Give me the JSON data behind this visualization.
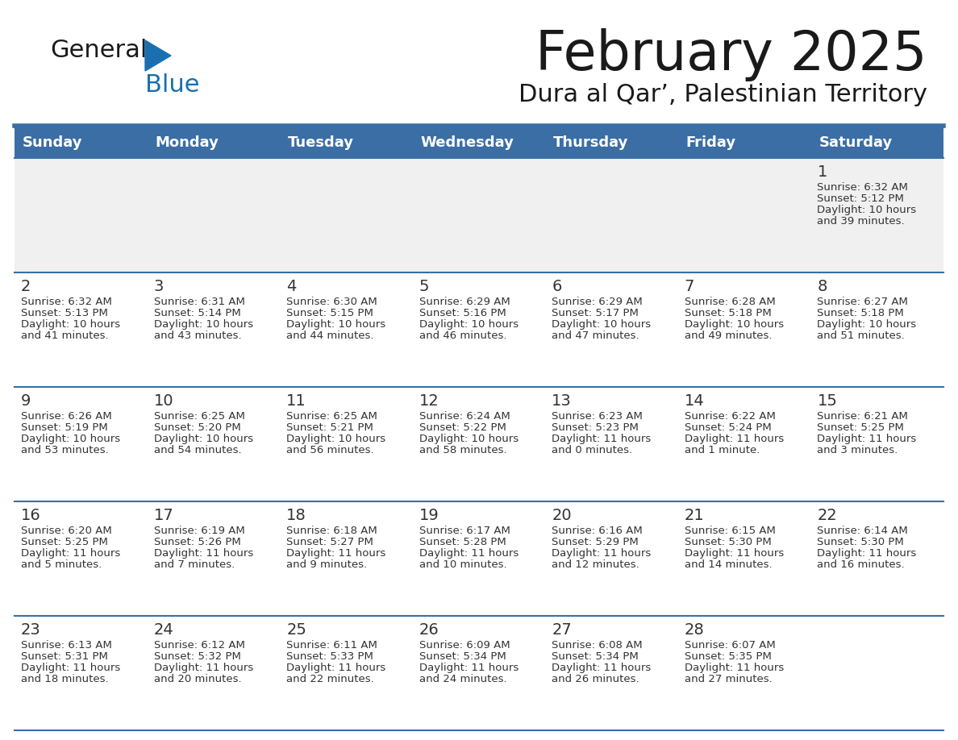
{
  "title": "February 2025",
  "subtitle": "Dura al Qar’, Palestinian Territory",
  "days_of_week": [
    "Sunday",
    "Monday",
    "Tuesday",
    "Wednesday",
    "Thursday",
    "Friday",
    "Saturday"
  ],
  "header_bg": "#3a6ea5",
  "header_text": "#ffffff",
  "row_border": "#3a6ea5",
  "cell_bg_normal": "#ffffff",
  "cell_bg_first": "#f0f0f0",
  "title_color": "#1a1a1a",
  "subtitle_color": "#1a1a1a",
  "text_color": "#333333",
  "logo_black": "#1a1a1a",
  "logo_blue": "#1a6faf",
  "triangle_color": "#1a6faf",
  "calendar": [
    [
      {
        "day": null,
        "sunrise": null,
        "sunset": null,
        "daylight": null
      },
      {
        "day": null,
        "sunrise": null,
        "sunset": null,
        "daylight": null
      },
      {
        "day": null,
        "sunrise": null,
        "sunset": null,
        "daylight": null
      },
      {
        "day": null,
        "sunrise": null,
        "sunset": null,
        "daylight": null
      },
      {
        "day": null,
        "sunrise": null,
        "sunset": null,
        "daylight": null
      },
      {
        "day": null,
        "sunrise": null,
        "sunset": null,
        "daylight": null
      },
      {
        "day": 1,
        "sunrise": "6:32 AM",
        "sunset": "5:12 PM",
        "daylight": "10 hours\nand 39 minutes."
      }
    ],
    [
      {
        "day": 2,
        "sunrise": "6:32 AM",
        "sunset": "5:13 PM",
        "daylight": "10 hours\nand 41 minutes."
      },
      {
        "day": 3,
        "sunrise": "6:31 AM",
        "sunset": "5:14 PM",
        "daylight": "10 hours\nand 43 minutes."
      },
      {
        "day": 4,
        "sunrise": "6:30 AM",
        "sunset": "5:15 PM",
        "daylight": "10 hours\nand 44 minutes."
      },
      {
        "day": 5,
        "sunrise": "6:29 AM",
        "sunset": "5:16 PM",
        "daylight": "10 hours\nand 46 minutes."
      },
      {
        "day": 6,
        "sunrise": "6:29 AM",
        "sunset": "5:17 PM",
        "daylight": "10 hours\nand 47 minutes."
      },
      {
        "day": 7,
        "sunrise": "6:28 AM",
        "sunset": "5:18 PM",
        "daylight": "10 hours\nand 49 minutes."
      },
      {
        "day": 8,
        "sunrise": "6:27 AM",
        "sunset": "5:18 PM",
        "daylight": "10 hours\nand 51 minutes."
      }
    ],
    [
      {
        "day": 9,
        "sunrise": "6:26 AM",
        "sunset": "5:19 PM",
        "daylight": "10 hours\nand 53 minutes."
      },
      {
        "day": 10,
        "sunrise": "6:25 AM",
        "sunset": "5:20 PM",
        "daylight": "10 hours\nand 54 minutes."
      },
      {
        "day": 11,
        "sunrise": "6:25 AM",
        "sunset": "5:21 PM",
        "daylight": "10 hours\nand 56 minutes."
      },
      {
        "day": 12,
        "sunrise": "6:24 AM",
        "sunset": "5:22 PM",
        "daylight": "10 hours\nand 58 minutes."
      },
      {
        "day": 13,
        "sunrise": "6:23 AM",
        "sunset": "5:23 PM",
        "daylight": "11 hours\nand 0 minutes."
      },
      {
        "day": 14,
        "sunrise": "6:22 AM",
        "sunset": "5:24 PM",
        "daylight": "11 hours\nand 1 minute."
      },
      {
        "day": 15,
        "sunrise": "6:21 AM",
        "sunset": "5:25 PM",
        "daylight": "11 hours\nand 3 minutes."
      }
    ],
    [
      {
        "day": 16,
        "sunrise": "6:20 AM",
        "sunset": "5:25 PM",
        "daylight": "11 hours\nand 5 minutes."
      },
      {
        "day": 17,
        "sunrise": "6:19 AM",
        "sunset": "5:26 PM",
        "daylight": "11 hours\nand 7 minutes."
      },
      {
        "day": 18,
        "sunrise": "6:18 AM",
        "sunset": "5:27 PM",
        "daylight": "11 hours\nand 9 minutes."
      },
      {
        "day": 19,
        "sunrise": "6:17 AM",
        "sunset": "5:28 PM",
        "daylight": "11 hours\nand 10 minutes."
      },
      {
        "day": 20,
        "sunrise": "6:16 AM",
        "sunset": "5:29 PM",
        "daylight": "11 hours\nand 12 minutes."
      },
      {
        "day": 21,
        "sunrise": "6:15 AM",
        "sunset": "5:30 PM",
        "daylight": "11 hours\nand 14 minutes."
      },
      {
        "day": 22,
        "sunrise": "6:14 AM",
        "sunset": "5:30 PM",
        "daylight": "11 hours\nand 16 minutes."
      }
    ],
    [
      {
        "day": 23,
        "sunrise": "6:13 AM",
        "sunset": "5:31 PM",
        "daylight": "11 hours\nand 18 minutes."
      },
      {
        "day": 24,
        "sunrise": "6:12 AM",
        "sunset": "5:32 PM",
        "daylight": "11 hours\nand 20 minutes."
      },
      {
        "day": 25,
        "sunrise": "6:11 AM",
        "sunset": "5:33 PM",
        "daylight": "11 hours\nand 22 minutes."
      },
      {
        "day": 26,
        "sunrise": "6:09 AM",
        "sunset": "5:34 PM",
        "daylight": "11 hours\nand 24 minutes."
      },
      {
        "day": 27,
        "sunrise": "6:08 AM",
        "sunset": "5:34 PM",
        "daylight": "11 hours\nand 26 minutes."
      },
      {
        "day": 28,
        "sunrise": "6:07 AM",
        "sunset": "5:35 PM",
        "daylight": "11 hours\nand 27 minutes."
      },
      {
        "day": null,
        "sunrise": null,
        "sunset": null,
        "daylight": null
      }
    ]
  ]
}
